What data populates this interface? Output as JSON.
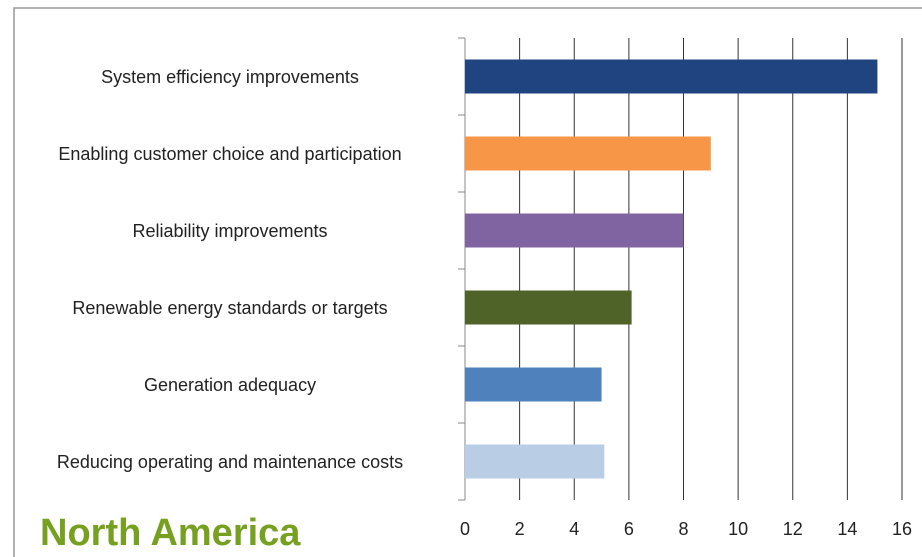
{
  "chart_data": {
    "type": "barh",
    "title": "North America",
    "categories": [
      "System efficiency improvements",
      "Enabling customer choice and participation",
      "Reliability improvements",
      "Renewable energy standards or targets",
      "Generation adequacy",
      "Reducing operating and maintenance costs"
    ],
    "values": [
      15.1,
      9.0,
      8.0,
      6.1,
      5.0,
      5.1
    ],
    "colors": [
      "#1f4480",
      "#f79646",
      "#8064a2",
      "#4f6228",
      "#4f81bd",
      "#b9cde5"
    ],
    "xlim": [
      0,
      16
    ],
    "xticks": [
      0,
      2,
      4,
      6,
      8,
      10,
      12,
      14,
      16
    ],
    "grid": true
  }
}
